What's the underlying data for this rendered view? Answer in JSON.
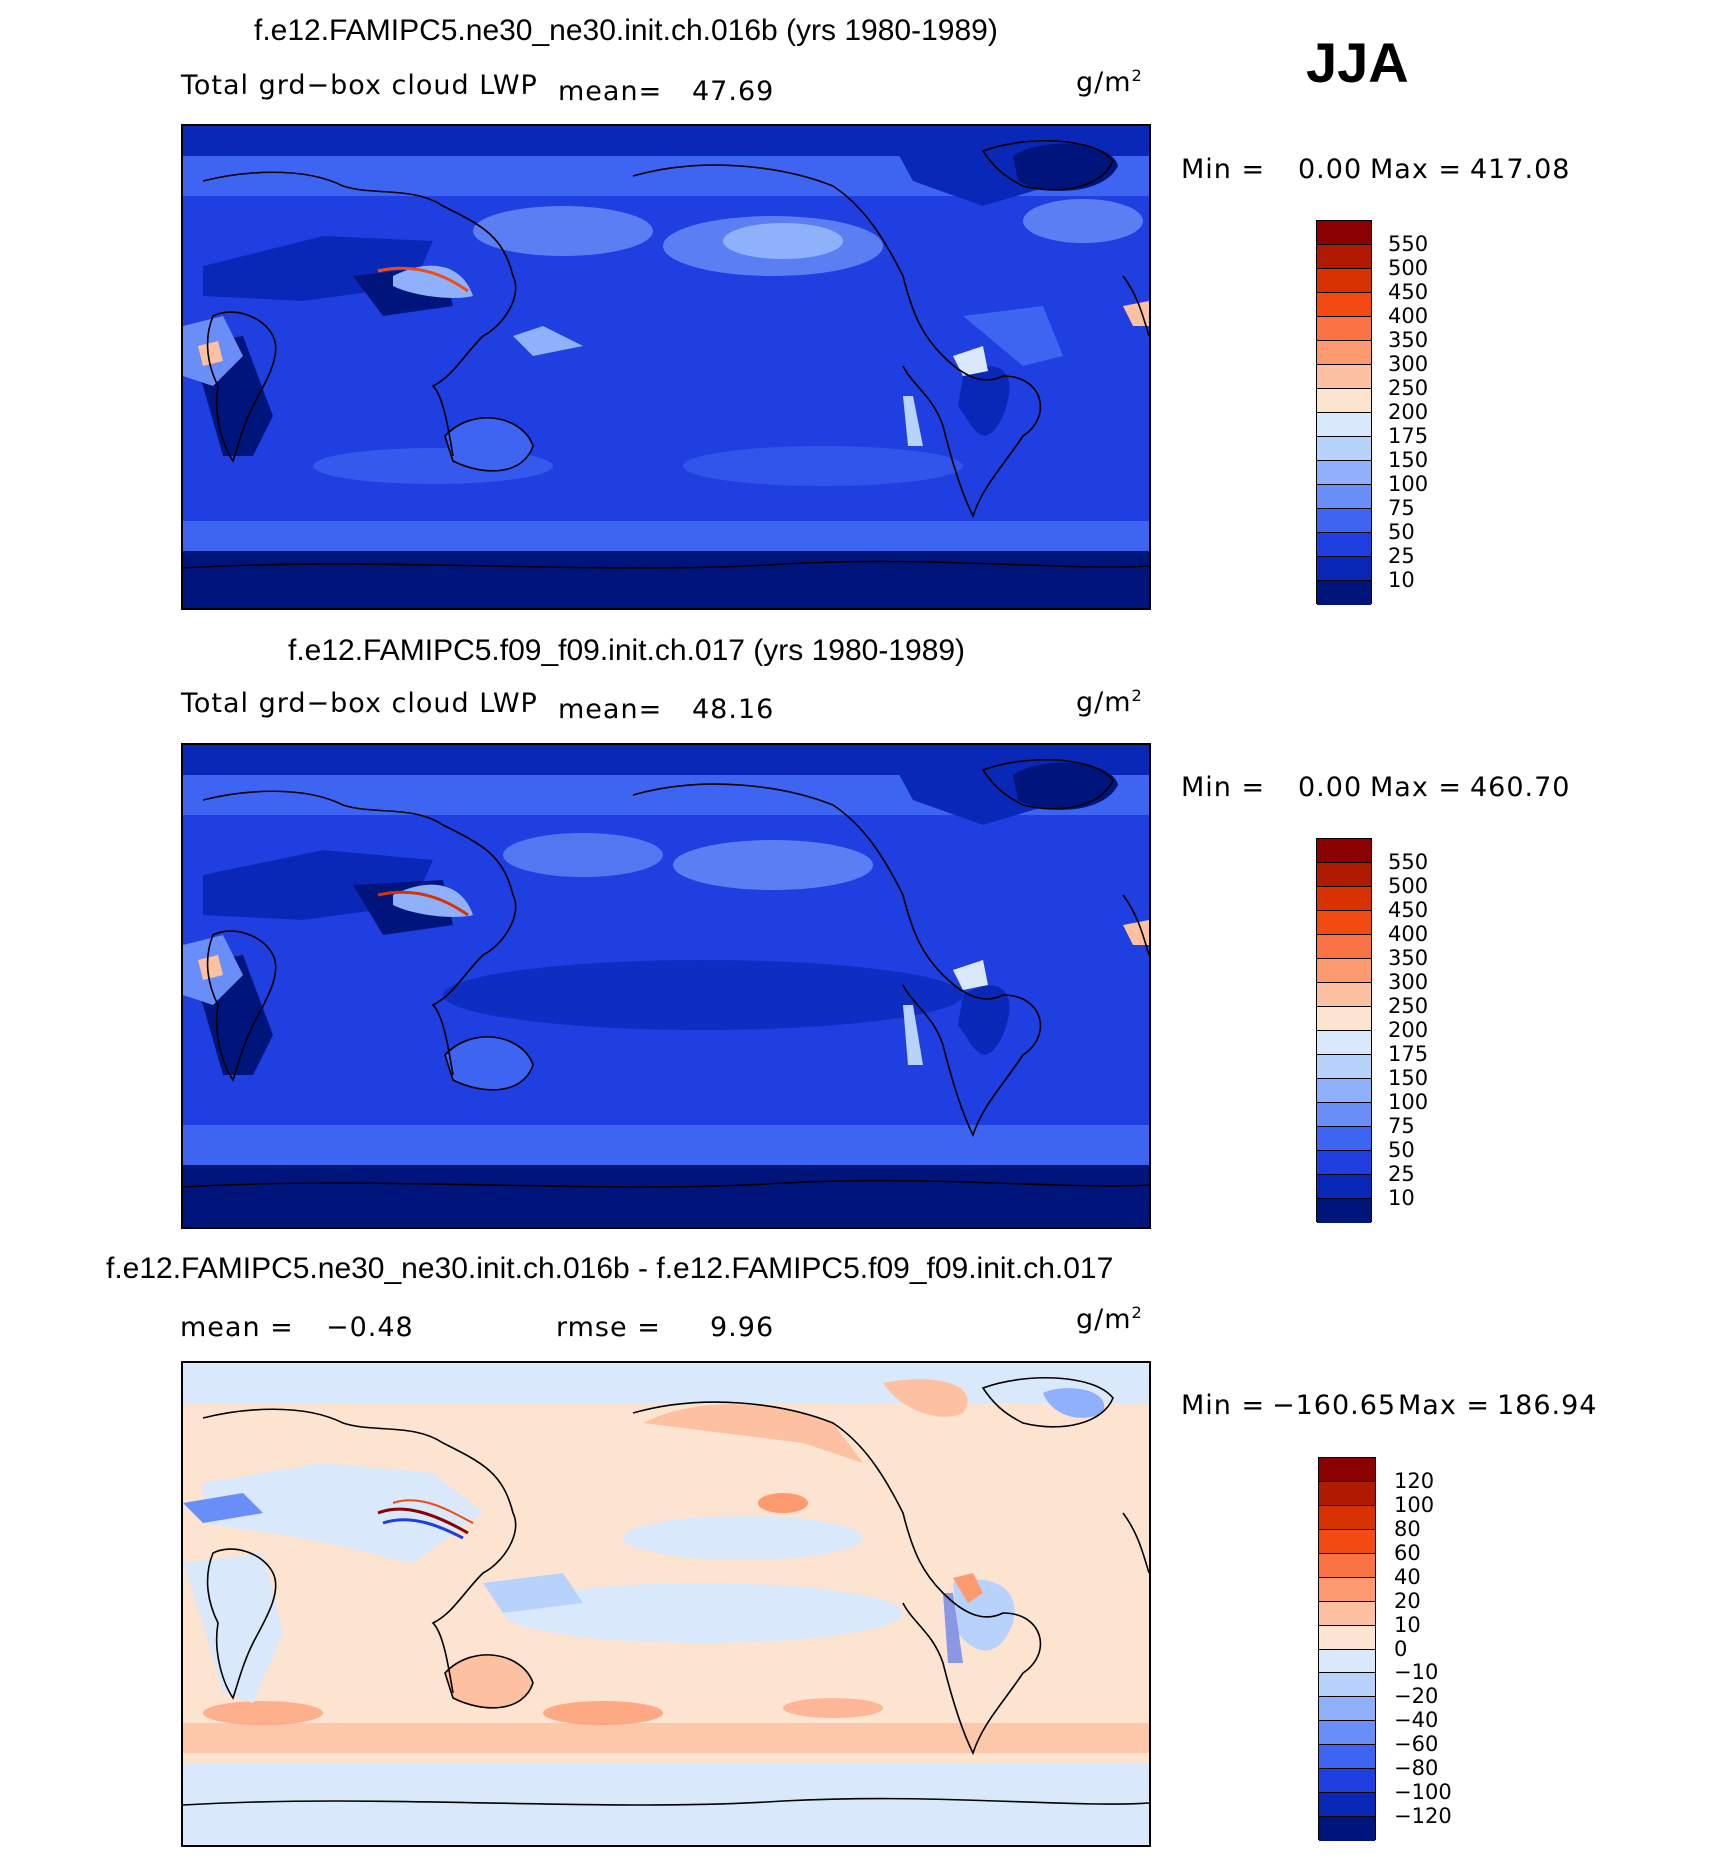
{
  "season": "JJA",
  "panels": [
    {
      "title": "f.e12.FAMIPC5.ne30_ne30.init.ch.016b (yrs 1980-1989)",
      "variable": "Total grd−box cloud LWP",
      "mean_label": "mean=",
      "mean_value": "47.69",
      "units": "g/m",
      "units_sup": "2",
      "min_label": "Min =",
      "min_value": "0.00",
      "max_label": "Max =",
      "max_value": "417.08",
      "colorbar": {
        "labels": [
          "550",
          "500",
          "450",
          "400",
          "350",
          "300",
          "250",
          "200",
          "175",
          "150",
          "100",
          "75",
          "50",
          "25",
          "10"
        ],
        "colors": [
          "#8b0000",
          "#b01a00",
          "#d83200",
          "#f24a10",
          "#fb7245",
          "#fd9a70",
          "#fdc0a0",
          "#fde4d0",
          "#d9e8fa",
          "#b7d2fb",
          "#8fb0fa",
          "#6a8ef8",
          "#3e64f2",
          "#1f3fe0",
          "#0a28b8",
          "#00157c"
        ]
      },
      "chart_data": {
        "type": "heatmap",
        "title": "f.e12.FAMIPC5.ne30_ne30.init.ch.016b (yrs 1980-1989)",
        "field": "Total grd−box cloud LWP",
        "units": "g/m2",
        "mean": 47.69,
        "min": 0.0,
        "max": 417.08,
        "contour_levels": [
          10,
          25,
          50,
          75,
          100,
          150,
          175,
          200,
          250,
          300,
          350,
          400,
          450,
          500,
          550
        ]
      }
    },
    {
      "title": "f.e12.FAMIPC5.f09_f09.init.ch.017 (yrs 1980-1989)",
      "variable": "Total grd−box cloud LWP",
      "mean_label": "mean=",
      "mean_value": "48.16",
      "units": "g/m",
      "units_sup": "2",
      "min_label": "Min =",
      "min_value": "0.00",
      "max_label": "Max =",
      "max_value": "460.70",
      "colorbar": {
        "labels": [
          "550",
          "500",
          "450",
          "400",
          "350",
          "300",
          "250",
          "200",
          "175",
          "150",
          "100",
          "75",
          "50",
          "25",
          "10"
        ],
        "colors": [
          "#8b0000",
          "#b01a00",
          "#d83200",
          "#f24a10",
          "#fb7245",
          "#fd9a70",
          "#fdc0a0",
          "#fde4d0",
          "#d9e8fa",
          "#b7d2fb",
          "#8fb0fa",
          "#6a8ef8",
          "#3e64f2",
          "#1f3fe0",
          "#0a28b8",
          "#00157c"
        ]
      },
      "chart_data": {
        "type": "heatmap",
        "title": "f.e12.FAMIPC5.f09_f09.init.ch.017 (yrs 1980-1989)",
        "field": "Total grd−box cloud LWP",
        "units": "g/m2",
        "mean": 48.16,
        "min": 0.0,
        "max": 460.7,
        "contour_levels": [
          10,
          25,
          50,
          75,
          100,
          150,
          175,
          200,
          250,
          300,
          350,
          400,
          450,
          500,
          550
        ]
      }
    },
    {
      "title": "f.e12.FAMIPC5.ne30_ne30.init.ch.016b - f.e12.FAMIPC5.f09_f09.init.ch.017",
      "mean_label": "mean =",
      "mean_value": "−0.48",
      "rmse_label": "rmse =",
      "rmse_value": "9.96",
      "units": "g/m",
      "units_sup": "2",
      "min_label": "Min =",
      "min_value": "−160.65",
      "max_label": "Max =",
      "max_value": "186.94",
      "colorbar": {
        "labels": [
          "120",
          "100",
          "80",
          "60",
          "40",
          "20",
          "10",
          "0",
          "−10",
          "−20",
          "−40",
          "−60",
          "−80",
          "−100",
          "−120"
        ],
        "colors": [
          "#8b0000",
          "#b01a00",
          "#d83200",
          "#f24a10",
          "#fb7245",
          "#fd9a70",
          "#fdc0a0",
          "#fde4d0",
          "#d9e8fa",
          "#b7d2fb",
          "#8fb0fa",
          "#6a8ef8",
          "#3e64f2",
          "#1f3fe0",
          "#0a28b8",
          "#00157c"
        ]
      },
      "chart_data": {
        "type": "heatmap",
        "title": "f.e12.FAMIPC5.ne30_ne30.init.ch.016b - f.e12.FAMIPC5.f09_f09.init.ch.017",
        "units": "g/m2",
        "mean": -0.48,
        "rmse": 9.96,
        "min": -160.65,
        "max": 186.94,
        "contour_levels": [
          -120,
          -100,
          -80,
          -60,
          -40,
          -20,
          -10,
          0,
          10,
          20,
          40,
          60,
          80,
          100,
          120
        ]
      }
    }
  ]
}
